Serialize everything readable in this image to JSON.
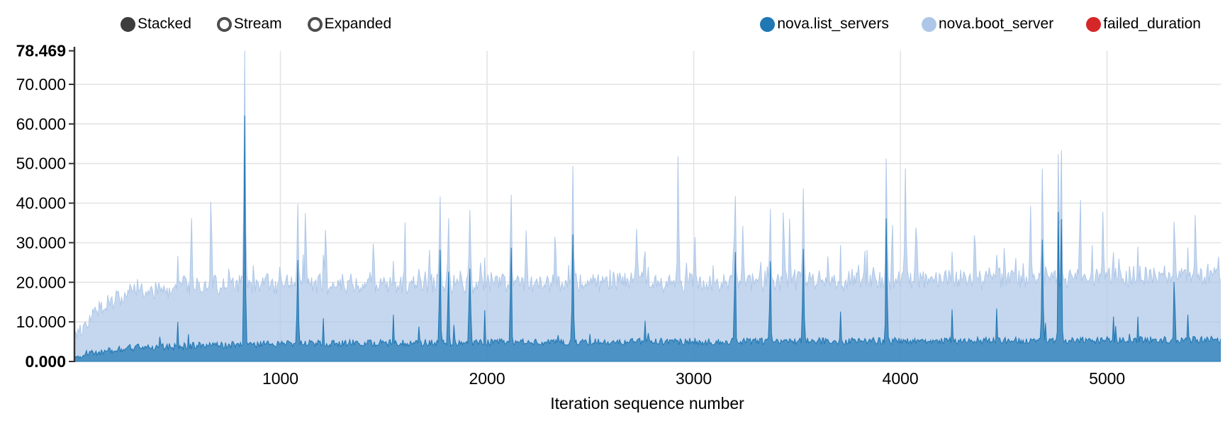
{
  "chart_controls": {
    "options": [
      {
        "label": "Stacked",
        "selected": true
      },
      {
        "label": "Stream",
        "selected": false
      },
      {
        "label": "Expanded",
        "selected": false
      }
    ]
  },
  "legend": {
    "items": [
      {
        "label": "nova.list_servers",
        "color": "#1f77b4"
      },
      {
        "label": "nova.boot_server",
        "color": "#aec7e8"
      },
      {
        "label": "failed_duration",
        "color": "#d62728"
      }
    ]
  },
  "chart_data": {
    "type": "area",
    "stacking": "stacked",
    "xlabel": "Iteration sequence number",
    "ylabel": "",
    "grid": true,
    "legend_position": "top-right",
    "x_domain": [
      0,
      5550
    ],
    "y_max": 78.469,
    "fill_opacity": 0.72,
    "noise_seed": 1337,
    "x_ticks": [
      {
        "v": 1000,
        "label": "1000"
      },
      {
        "v": 2000,
        "label": "2000"
      },
      {
        "v": 3000,
        "label": "3000"
      },
      {
        "v": 4000,
        "label": "4000"
      },
      {
        "v": 5000,
        "label": "5000"
      }
    ],
    "y_ticks": [
      {
        "v": 78.469,
        "label": "78.469",
        "bold": true
      },
      {
        "v": 70,
        "label": "70.000",
        "bold": false
      },
      {
        "v": 60,
        "label": "60.000",
        "bold": false
      },
      {
        "v": 50,
        "label": "50.000",
        "bold": false
      },
      {
        "v": 40,
        "label": "40.000",
        "bold": false
      },
      {
        "v": 30,
        "label": "30.000",
        "bold": false
      },
      {
        "v": 20,
        "label": "20.000",
        "bold": false
      },
      {
        "v": 10,
        "label": "10.000",
        "bold": false
      },
      {
        "v": 0,
        "label": "0.000",
        "bold": true
      }
    ],
    "series": [
      {
        "name": "nova.list_servers",
        "color": "#1f77b4",
        "baseline_points": [
          [
            0,
            1.0
          ],
          [
            80,
            2.2
          ],
          [
            250,
            3.4
          ],
          [
            600,
            4.0
          ],
          [
            1200,
            4.6
          ],
          [
            2500,
            5.0
          ],
          [
            4000,
            5.2
          ],
          [
            5550,
            5.5
          ]
        ],
        "noise_amplitude": 0.9,
        "burst_probability": 0.022,
        "burst_scale": 9,
        "spike_points": [
          [
            827,
            58.5
          ],
          [
            1084,
            21
          ],
          [
            1772,
            23.5
          ],
          [
            1813,
            18
          ],
          [
            1918,
            18.5
          ],
          [
            2116,
            23
          ],
          [
            2415,
            26.5
          ],
          [
            3200,
            23
          ],
          [
            3370,
            20
          ],
          [
            3530,
            24
          ],
          [
            3932,
            30.5
          ],
          [
            4687,
            26
          ],
          [
            4765,
            32
          ],
          [
            4778,
            31
          ],
          [
            5326,
            15
          ]
        ]
      },
      {
        "name": "nova.boot_server",
        "color": "#aec7e8",
        "baseline_points": [
          [
            0,
            5
          ],
          [
            40,
            7.5
          ],
          [
            100,
            10
          ],
          [
            200,
            13.5
          ],
          [
            350,
            14.8
          ],
          [
            700,
            15.2
          ],
          [
            1500,
            14.8
          ],
          [
            2500,
            15.2
          ],
          [
            3500,
            15.4
          ],
          [
            4500,
            15.8
          ],
          [
            5550,
            16.6
          ]
        ],
        "noise_amplitude": 2.3,
        "burst_probability": 0.055,
        "burst_scale": 6.5,
        "spike_points": [
          [
            569,
            18.5
          ],
          [
            665,
            19
          ],
          [
            1122,
            17.5
          ],
          [
            1218,
            15.5
          ],
          [
            1450,
            13
          ],
          [
            1602,
            13.5
          ],
          [
            1721,
            10
          ],
          [
            2190,
            13
          ],
          [
            2330,
            11.5
          ],
          [
            2724,
            15
          ],
          [
            2925,
            30.5
          ],
          [
            3005,
            8
          ],
          [
            3238,
            15.5
          ],
          [
            3435,
            19
          ],
          [
            3465,
            13
          ],
          [
            3960,
            15
          ],
          [
            4024,
            27
          ],
          [
            4075,
            11.5
          ],
          [
            4360,
            13
          ],
          [
            4630,
            19
          ],
          [
            4870,
            18
          ],
          [
            4980,
            14.5
          ],
          [
            5428,
            14
          ]
        ]
      },
      {
        "name": "failed_duration",
        "color": "#d62728",
        "baseline_points": [
          [
            0,
            0
          ],
          [
            5550,
            0
          ]
        ],
        "noise_amplitude": 0,
        "burst_probability": 0,
        "burst_scale": 0,
        "spike_points": []
      }
    ]
  }
}
